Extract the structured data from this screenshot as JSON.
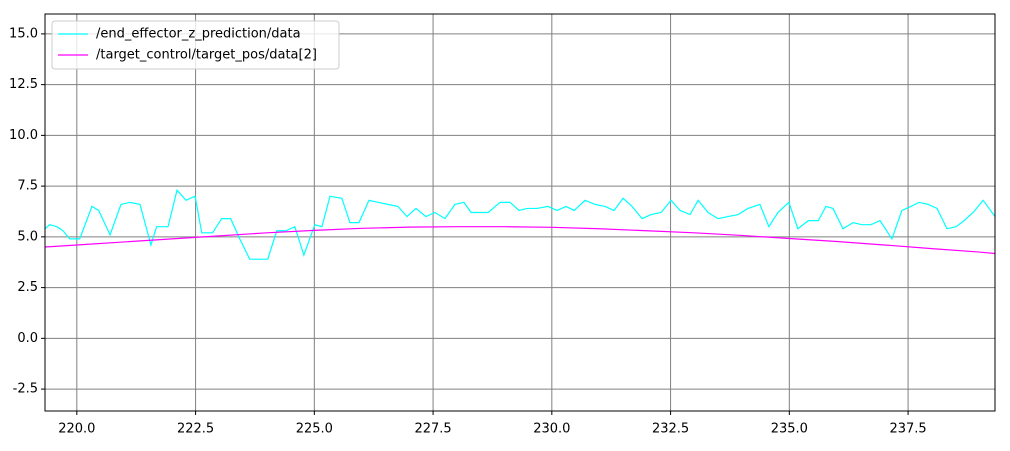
{
  "chart_data": {
    "type": "line",
    "xlim": [
      219.33,
      239.33
    ],
    "ylim": [
      -3.58,
      15.98
    ],
    "xticks": [
      {
        "value": 220,
        "label": "220.0"
      },
      222.5,
      {
        "value": 225,
        "label": "225.0"
      },
      227.5,
      {
        "value": 230,
        "label": "230.0"
      },
      232.5,
      {
        "value": 235,
        "label": "235.0"
      },
      237.5
    ],
    "yticks": [
      {
        "value": -2.5,
        "label": "-2.5"
      },
      {
        "value": 0,
        "label": "0.0"
      },
      2.5,
      {
        "value": 5,
        "label": "5.0"
      },
      7.5,
      {
        "value": 10,
        "label": "10.0"
      },
      12.5,
      {
        "value": 15,
        "label": "15.0"
      }
    ],
    "grid": true,
    "grid_color": "#808080",
    "legend": "upper-left",
    "series": [
      {
        "name": "/end_effector_z_prediction/data",
        "color": "#00ffff",
        "x": [
          219.33,
          219.43,
          219.58,
          219.71,
          219.85,
          220.06,
          220.32,
          220.46,
          220.7,
          220.93,
          221.12,
          221.33,
          221.56,
          221.68,
          221.92,
          222.11,
          222.3,
          222.49,
          222.63,
          222.86,
          223.05,
          223.24,
          223.43,
          223.64,
          223.83,
          224.02,
          224.21,
          224.4,
          224.59,
          224.78,
          225.01,
          225.16,
          225.33,
          225.58,
          225.75,
          225.94,
          226.15,
          226.34,
          226.55,
          226.76,
          226.95,
          227.14,
          227.35,
          227.54,
          227.75,
          227.96,
          228.15,
          228.3,
          228.49,
          228.66,
          228.91,
          229.12,
          229.31,
          229.48,
          229.69,
          229.92,
          230.11,
          230.3,
          230.47,
          230.7,
          230.91,
          231.12,
          231.31,
          231.5,
          231.69,
          231.9,
          232.09,
          232.3,
          232.51,
          232.7,
          232.91,
          233.08,
          233.29,
          233.5,
          233.71,
          233.92,
          234.13,
          234.38,
          234.57,
          234.76,
          234.99,
          235.18,
          235.4,
          235.61,
          235.77,
          235.92,
          236.13,
          236.34,
          236.53,
          236.72,
          236.91,
          237.16,
          237.37,
          237.56,
          237.73,
          237.92,
          238.11,
          238.32,
          238.51,
          238.68,
          238.87,
          239.08,
          239.33
        ],
        "values": [
          5.4,
          5.6,
          5.5,
          5.3,
          4.9,
          4.9,
          6.5,
          6.3,
          5.1,
          6.6,
          6.7,
          6.6,
          4.6,
          5.5,
          5.5,
          7.3,
          6.8,
          7.0,
          5.2,
          5.2,
          5.9,
          5.9,
          4.9,
          3.9,
          3.9,
          3.9,
          5.3,
          5.3,
          5.5,
          4.1,
          5.6,
          5.5,
          7.0,
          6.9,
          5.7,
          5.7,
          6.8,
          6.7,
          6.6,
          6.5,
          6.0,
          6.4,
          6.0,
          6.2,
          5.9,
          6.6,
          6.7,
          6.2,
          6.2,
          6.2,
          6.7,
          6.7,
          6.3,
          6.4,
          6.4,
          6.5,
          6.3,
          6.5,
          6.3,
          6.8,
          6.6,
          6.5,
          6.3,
          6.9,
          6.5,
          5.9,
          6.1,
          6.2,
          6.8,
          6.3,
          6.1,
          6.8,
          6.2,
          5.9,
          6.0,
          6.1,
          6.4,
          6.6,
          5.5,
          6.2,
          6.7,
          5.4,
          5.8,
          5.8,
          6.5,
          6.4,
          5.4,
          5.7,
          5.6,
          5.6,
          5.8,
          4.9,
          6.3,
          6.5,
          6.7,
          6.6,
          6.4,
          5.4,
          5.5,
          5.8,
          6.2,
          6.8,
          6.0
        ]
      },
      {
        "name": "/target_control/target_pos/data[2]",
        "color": "#ff00ff",
        "x": [
          219.33,
          220,
          221,
          222,
          223,
          224,
          225,
          226,
          227,
          228,
          229,
          230,
          231,
          232,
          233,
          234,
          235,
          236,
          237,
          238,
          239,
          239.33
        ],
        "values": [
          4.5,
          4.6,
          4.75,
          4.9,
          5.05,
          5.2,
          5.32,
          5.42,
          5.48,
          5.5,
          5.5,
          5.47,
          5.4,
          5.3,
          5.2,
          5.07,
          4.92,
          4.77,
          4.6,
          4.42,
          4.25,
          4.18
        ]
      }
    ]
  }
}
